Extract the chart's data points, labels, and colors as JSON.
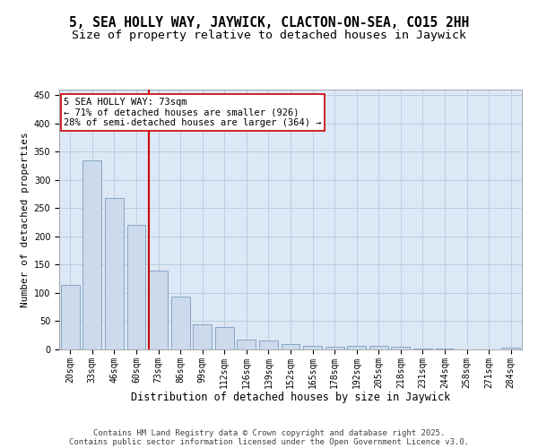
{
  "title": "5, SEA HOLLY WAY, JAYWICK, CLACTON-ON-SEA, CO15 2HH",
  "subtitle": "Size of property relative to detached houses in Jaywick",
  "xlabel": "Distribution of detached houses by size in Jaywick",
  "ylabel": "Number of detached properties",
  "categories": [
    "20sqm",
    "33sqm",
    "46sqm",
    "60sqm",
    "73sqm",
    "86sqm",
    "99sqm",
    "112sqm",
    "126sqm",
    "139sqm",
    "152sqm",
    "165sqm",
    "178sqm",
    "192sqm",
    "205sqm",
    "218sqm",
    "231sqm",
    "244sqm",
    "258sqm",
    "271sqm",
    "284sqm"
  ],
  "values": [
    115,
    335,
    268,
    221,
    139,
    93,
    44,
    40,
    17,
    16,
    10,
    7,
    5,
    6,
    6,
    5,
    2,
    1,
    0,
    0,
    3
  ],
  "bar_color": "#ccdaeb",
  "bar_edge_color": "#7a9dc0",
  "red_line_index": 4,
  "annotation_line1": "5 SEA HOLLY WAY: 73sqm",
  "annotation_line2": "← 71% of detached houses are smaller (926)",
  "annotation_line3": "28% of semi-detached houses are larger (364) →",
  "annotation_box_color": "#ffffff",
  "annotation_box_edge": "#cc0000",
  "red_line_color": "#cc0000",
  "ylim": [
    0,
    460
  ],
  "yticks": [
    0,
    50,
    100,
    150,
    200,
    250,
    300,
    350,
    400,
    450
  ],
  "grid_color": "#b8c8dc",
  "background_color": "#dce8f5",
  "footer_line1": "Contains HM Land Registry data © Crown copyright and database right 2025.",
  "footer_line2": "Contains public sector information licensed under the Open Government Licence v3.0.",
  "title_fontsize": 10.5,
  "subtitle_fontsize": 9.5,
  "xlabel_fontsize": 8.5,
  "ylabel_fontsize": 8,
  "tick_fontsize": 7,
  "annotation_fontsize": 7.5,
  "footer_fontsize": 6.5
}
